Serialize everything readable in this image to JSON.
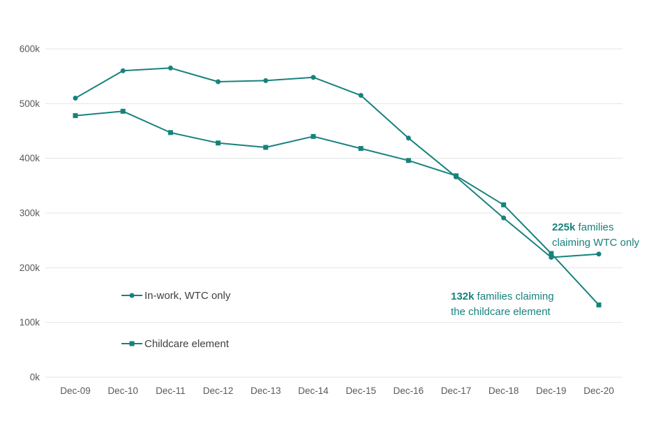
{
  "chart_data": {
    "type": "line",
    "title": "",
    "xlabel": "",
    "ylabel": "",
    "x_categories": [
      "Dec-09",
      "Dec-10",
      "Dec-11",
      "Dec-12",
      "Dec-13",
      "Dec-14",
      "Dec-15",
      "Dec-16",
      "Dec-17",
      "Dec-18",
      "Dec-19",
      "Dec-20"
    ],
    "series": [
      {
        "name": "In-work, WTC only",
        "marker": "circle",
        "values_k": [
          510,
          560,
          565,
          540,
          542,
          548,
          515,
          437,
          366,
          291,
          219,
          225
        ]
      },
      {
        "name": "Childcare element",
        "marker": "square",
        "values_k": [
          478,
          486,
          447,
          428,
          420,
          440,
          418,
          396,
          368,
          315,
          226,
          132
        ]
      }
    ],
    "ylim_k": [
      0,
      600
    ],
    "y_ticks": [
      "0k",
      "100k",
      "200k",
      "300k",
      "400k",
      "500k",
      "600k"
    ],
    "y_tick_values_k": [
      0,
      100,
      200,
      300,
      400,
      500,
      600
    ],
    "grid": "horizontal",
    "legend_position": "inside-left-bottom",
    "annotations": [
      {
        "line1_bold": "225k",
        "line1_rest": " families",
        "line2": "claiming WTC only"
      },
      {
        "line1_bold": "132k",
        "line1_rest": " families claiming",
        "line2": "the childcare element"
      }
    ],
    "colors": {
      "series": "#17827d",
      "grid": "#e5e5e5",
      "tick_text": "#595959",
      "legend_text": "#404040",
      "annotation_text": "#17827d",
      "background": "#ffffff"
    }
  }
}
